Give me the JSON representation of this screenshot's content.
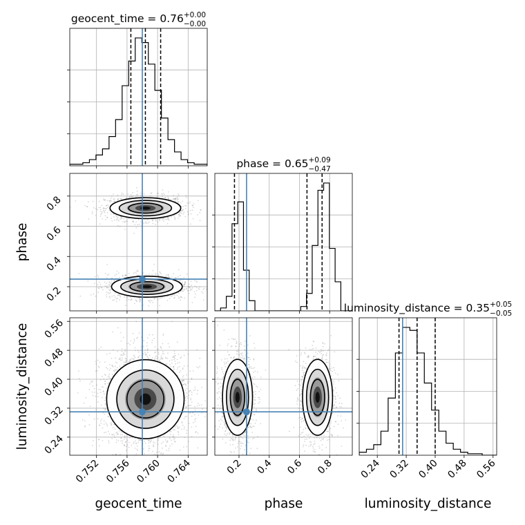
{
  "chart_data": {
    "type": "corner",
    "parameters": [
      {
        "key": "geocent_time",
        "axis_label": "geocent_time",
        "title_prefix": "geocent_time = 0.76",
        "title_sup": "+0.00",
        "title_sub": "−0.00",
        "range": [
          0.7485,
          0.7665
        ],
        "ticks": [
          0.752,
          0.756,
          0.76,
          0.764
        ],
        "tick_labels": [
          "0.752",
          "0.756",
          "0.760",
          "0.764"
        ],
        "injection": 0.758,
        "quantiles": [
          0.7565,
          0.7584,
          0.7604
        ],
        "histogram": [
          1,
          1,
          2,
          4,
          7,
          11,
          19,
          30,
          52,
          68,
          83,
          80,
          66,
          49,
          31,
          17,
          9,
          4,
          2,
          1,
          1
        ]
      },
      {
        "key": "phase",
        "axis_label": "phase",
        "title_prefix": "phase = 0.65",
        "title_sup": "+0.09",
        "title_sub": "−0.47",
        "range": [
          0.04,
          0.95
        ],
        "ticks": [
          0.2,
          0.4,
          0.6,
          0.8
        ],
        "tick_labels": [
          "0.2",
          "0.4",
          "0.6",
          "0.8"
        ],
        "injection": 0.25,
        "quantiles": [
          0.17,
          0.65,
          0.75
        ],
        "histogram": [
          0,
          2,
          10,
          60,
          75,
          28,
          7,
          0,
          0,
          0,
          0,
          0,
          0,
          0,
          0,
          3,
          12,
          45,
          83,
          88,
          43,
          20,
          0,
          0
        ]
      },
      {
        "key": "luminosity_distance",
        "axis_label": "luminosity_distance",
        "title_prefix": "luminosity_distance = 0.35",
        "title_sup": "+0.05",
        "title_sub": "−0.05",
        "range": [
          0.19,
          0.57
        ],
        "ticks": [
          0.24,
          0.32,
          0.4,
          0.48,
          0.56
        ],
        "tick_labels": [
          "0.24",
          "0.32",
          "0.40",
          "0.48",
          "0.56"
        ],
        "injection": 0.31,
        "quantiles": [
          0.3,
          0.35,
          0.4
        ],
        "histogram": [
          2,
          4,
          7,
          16,
          38,
          68,
          85,
          83,
          68,
          48,
          30,
          16,
          8,
          4,
          2,
          1,
          1,
          0,
          0
        ]
      }
    ],
    "joint": [
      {
        "x": "geocent_time",
        "y": "phase",
        "modes": [
          {
            "cx": 0.7584,
            "cy": 0.72,
            "sx": 0.0021,
            "sy": 0.033,
            "weight": 0.5
          },
          {
            "cx": 0.7586,
            "cy": 0.2,
            "sx": 0.0021,
            "sy": 0.033,
            "weight": 0.5
          }
        ]
      },
      {
        "x": "geocent_time",
        "y": "luminosity_distance",
        "modes": [
          {
            "cx": 0.7584,
            "cy": 0.345,
            "sx": 0.0023,
            "sy": 0.052,
            "weight": 1.0
          }
        ]
      },
      {
        "x": "phase",
        "y": "luminosity_distance",
        "modes": [
          {
            "cx": 0.19,
            "cy": 0.35,
            "sx": 0.045,
            "sy": 0.05,
            "weight": 0.5
          },
          {
            "cx": 0.72,
            "cy": 0.35,
            "sx": 0.045,
            "sy": 0.05,
            "weight": 0.5
          }
        ]
      }
    ],
    "injection_color": "#4682b4",
    "hist_color": "#000000",
    "grid": true
  }
}
